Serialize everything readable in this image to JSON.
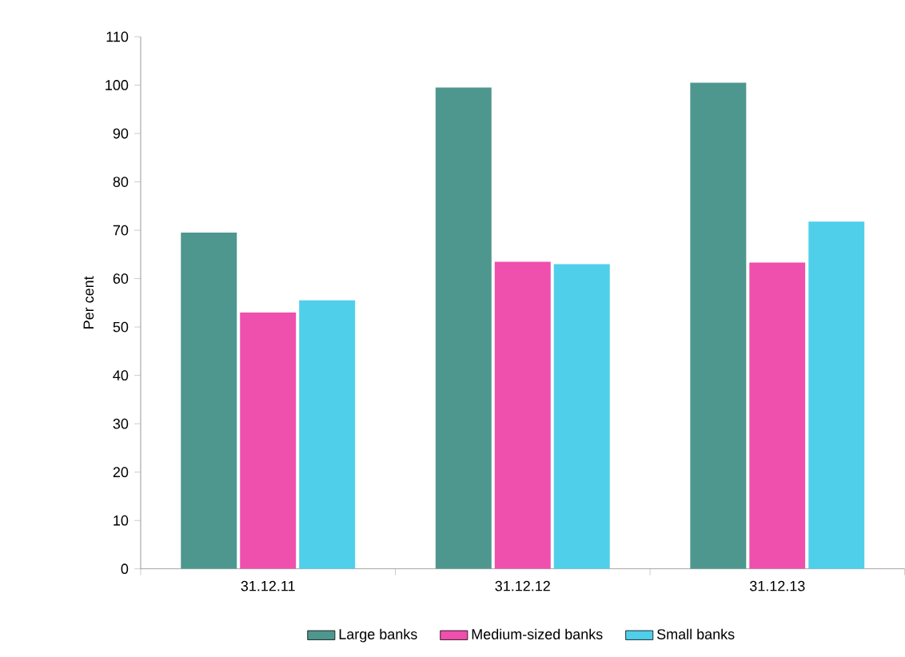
{
  "chart_data": {
    "type": "bar",
    "ylabel": "Per cent",
    "categories": [
      "31.12.11",
      "31.12.12",
      "31.12.13"
    ],
    "series": [
      {
        "name": "Large banks",
        "color": "#4e978f",
        "values": [
          69.5,
          99.5,
          100.5
        ]
      },
      {
        "name": "Medium-sized banks",
        "color": "#ef4fad",
        "values": [
          53,
          63.5,
          63.3
        ]
      },
      {
        "name": "Small banks",
        "color": "#4fcfea",
        "values": [
          55.5,
          63,
          71.8
        ]
      }
    ],
    "ylim": [
      0,
      110
    ],
    "yticks": [
      0,
      10,
      20,
      30,
      40,
      50,
      60,
      70,
      80,
      90,
      100,
      110
    ],
    "legend": "bottom"
  }
}
